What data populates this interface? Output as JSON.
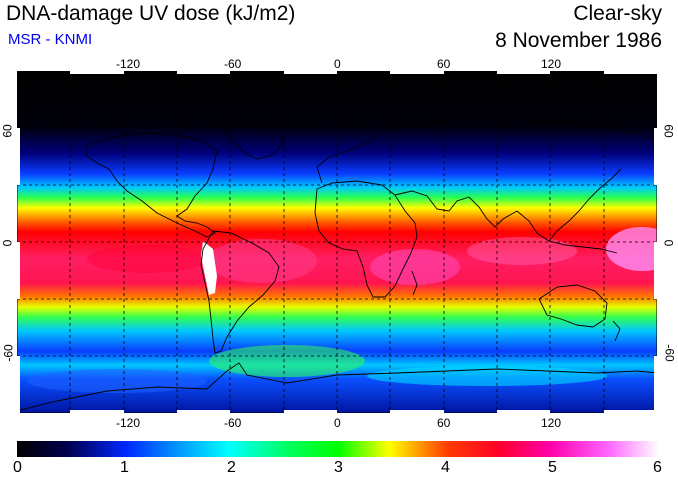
{
  "header": {
    "title": "DNA-damage UV dose (kJ/m2)",
    "subtitle": "MSR - KNMI",
    "sky_condition": "Clear-sky",
    "date": "8 November 1986"
  },
  "map": {
    "longitude_ticks": [
      "-120",
      "-60",
      "0",
      "60",
      "120"
    ],
    "latitude_ticks": [
      "60",
      "0",
      "-60"
    ],
    "longitude_range": [
      -180,
      180
    ],
    "latitude_range": [
      -90,
      90
    ]
  },
  "colorbar": {
    "ticks": [
      "0",
      "1",
      "2",
      "3",
      "4",
      "5",
      "6"
    ],
    "min": 0,
    "max": 6,
    "unit": "kJ/m2"
  },
  "colors": {
    "subtitle": "#0000ee",
    "coastline": "#000000",
    "grid": "#000000"
  }
}
